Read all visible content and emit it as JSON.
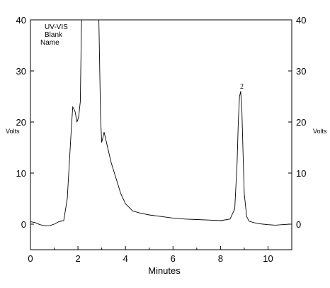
{
  "chart_data": {
    "type": "line",
    "xlabel": "Minutes",
    "ylabel_left": "Volts",
    "ylabel_right": "Volts",
    "xlim": [
      0,
      11
    ],
    "ylim": [
      -5,
      40
    ],
    "x_ticks": [
      "0",
      "2",
      "4",
      "6",
      "8",
      "10"
    ],
    "y_ticks": [
      "0",
      "10",
      "20",
      "30",
      "40"
    ],
    "legend": [
      "UV-VIS",
      "Blank",
      "Name"
    ],
    "grid": false,
    "series": [
      {
        "color": "#000000",
        "x": [
          0,
          0.2,
          0.4,
          0.6,
          0.8,
          1.0,
          1.2,
          1.4,
          1.55,
          1.7,
          1.78,
          1.88,
          1.96,
          2.03,
          2.1,
          2.15,
          2.18,
          2.25,
          2.4,
          2.6,
          2.8,
          2.88,
          2.95,
          3.0,
          3.05,
          3.1,
          3.15,
          3.25,
          3.4,
          3.6,
          3.8,
          4.0,
          4.3,
          4.6,
          5.0,
          5.5,
          6.0,
          6.5,
          7.0,
          7.5,
          8.0,
          8.4,
          8.6,
          8.7,
          8.75,
          8.8,
          8.85,
          8.9,
          8.95,
          9.0,
          9.1,
          9.2,
          9.4,
          9.6,
          9.8,
          10.0,
          10.3,
          10.6,
          10.9
        ],
        "y": [
          0.5,
          0.3,
          -0.1,
          -0.3,
          -0.3,
          0.0,
          0.5,
          0.7,
          5,
          17,
          23,
          22,
          20,
          21,
          24,
          40,
          40,
          40,
          40,
          40,
          40,
          40,
          21,
          16,
          17,
          18,
          17,
          15,
          12,
          9,
          6,
          4,
          2.6,
          2.2,
          1.8,
          1.5,
          1.2,
          1.0,
          0.9,
          0.8,
          0.7,
          1.0,
          3,
          12,
          20,
          25,
          26,
          22,
          14,
          6,
          1.5,
          0.6,
          0.3,
          0.1,
          0.0,
          -0.1,
          -0.2,
          -0.1,
          0.0
        ]
      }
    ],
    "annotations": [
      {
        "x": 8.9,
        "y": 26,
        "text": "2"
      }
    ]
  }
}
